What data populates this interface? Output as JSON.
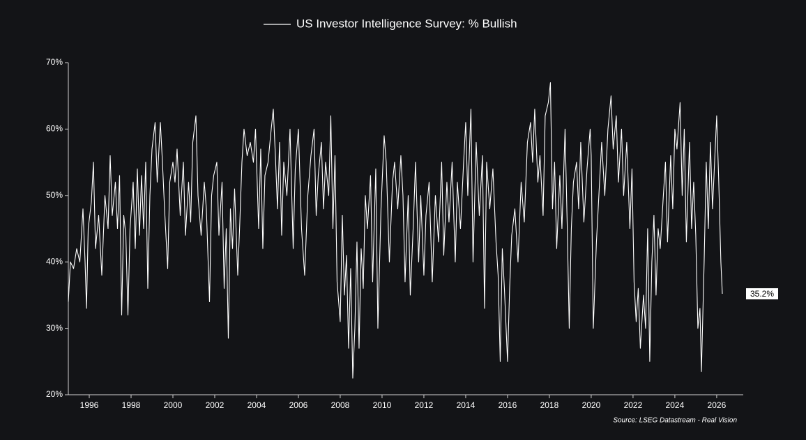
{
  "chart_data": {
    "type": "line",
    "title": "US Investor Intelligence Survey: % Bullish",
    "source": "Source: LSEG Datastream - Real Vision",
    "xlim": [
      1995.0,
      2027.27
    ],
    "xticks": [
      1996,
      1998,
      2000,
      2002,
      2004,
      2006,
      2008,
      2010,
      2012,
      2014,
      2016,
      2018,
      2020,
      2022,
      2024,
      2026
    ],
    "ylim": [
      20,
      70
    ],
    "yticks": [
      {
        "value": 20,
        "label": "20%"
      },
      {
        "value": 30,
        "label": "30%"
      },
      {
        "value": 40,
        "label": "40%"
      },
      {
        "value": 50,
        "label": "50%"
      },
      {
        "value": 60,
        "label": "60%"
      },
      {
        "value": 70,
        "label": "70%"
      }
    ],
    "last_label": "35.2%",
    "x": [
      1995.0,
      1995.1,
      1995.25,
      1995.4,
      1995.55,
      1995.7,
      1995.8,
      1995.87,
      1995.95,
      1996.1,
      1996.2,
      1996.3,
      1996.45,
      1996.6,
      1996.75,
      1996.9,
      1997.0,
      1997.1,
      1997.25,
      1997.35,
      1997.45,
      1997.55,
      1997.65,
      1997.75,
      1997.85,
      1997.95,
      1998.1,
      1998.2,
      1998.3,
      1998.4,
      1998.5,
      1998.6,
      1998.7,
      1998.8,
      1998.9,
      1999.0,
      1999.15,
      1999.25,
      1999.4,
      1999.5,
      1999.6,
      1999.75,
      1999.85,
      2000.0,
      2000.1,
      2000.2,
      2000.35,
      2000.5,
      2000.6,
      2000.75,
      2000.85,
      2000.95,
      2001.1,
      2001.2,
      2001.35,
      2001.5,
      2001.6,
      2001.75,
      2001.85,
      2001.95,
      2002.1,
      2002.2,
      2002.35,
      2002.45,
      2002.55,
      2002.65,
      2002.75,
      2002.85,
      2002.95,
      2003.1,
      2003.2,
      2003.3,
      2003.4,
      2003.55,
      2003.7,
      2003.85,
      2003.95,
      2004.1,
      2004.2,
      2004.3,
      2004.4,
      2004.55,
      2004.7,
      2004.8,
      2004.9,
      2005.0,
      2005.1,
      2005.2,
      2005.3,
      2005.45,
      2005.6,
      2005.75,
      2005.85,
      2006.0,
      2006.15,
      2006.3,
      2006.45,
      2006.6,
      2006.75,
      2006.85,
      2006.95,
      2007.1,
      2007.2,
      2007.3,
      2007.45,
      2007.55,
      2007.65,
      2007.75,
      2007.85,
      2008.0,
      2008.1,
      2008.2,
      2008.3,
      2008.4,
      2008.5,
      2008.6,
      2008.7,
      2008.8,
      2008.9,
      2009.0,
      2009.1,
      2009.2,
      2009.3,
      2009.45,
      2009.55,
      2009.7,
      2009.8,
      2009.95,
      2010.1,
      2010.2,
      2010.35,
      2010.5,
      2010.6,
      2010.75,
      2010.9,
      2011.0,
      2011.1,
      2011.25,
      2011.35,
      2011.5,
      2011.6,
      2011.75,
      2011.85,
      2012.0,
      2012.1,
      2012.25,
      2012.4,
      2012.55,
      2012.7,
      2012.85,
      2012.95,
      2013.1,
      2013.2,
      2013.35,
      2013.5,
      2013.6,
      2013.75,
      2013.9,
      2014.0,
      2014.1,
      2014.25,
      2014.35,
      2014.5,
      2014.65,
      2014.8,
      2014.9,
      2015.0,
      2015.15,
      2015.3,
      2015.45,
      2015.55,
      2015.65,
      2015.75,
      2015.85,
      2016.0,
      2016.1,
      2016.2,
      2016.35,
      2016.5,
      2016.65,
      2016.8,
      2016.95,
      2017.1,
      2017.2,
      2017.3,
      2017.45,
      2017.55,
      2017.7,
      2017.8,
      2017.95,
      2018.05,
      2018.15,
      2018.25,
      2018.35,
      2018.5,
      2018.6,
      2018.75,
      2018.85,
      2018.95,
      2019.05,
      2019.15,
      2019.3,
      2019.4,
      2019.5,
      2019.65,
      2019.8,
      2019.95,
      2020.0,
      2020.1,
      2020.25,
      2020.4,
      2020.5,
      2020.65,
      2020.8,
      2020.95,
      2021.05,
      2021.2,
      2021.3,
      2021.45,
      2021.55,
      2021.7,
      2021.85,
      2021.95,
      2022.05,
      2022.15,
      2022.25,
      2022.35,
      2022.5,
      2022.6,
      2022.7,
      2022.8,
      2022.9,
      2023.0,
      2023.1,
      2023.2,
      2023.3,
      2023.45,
      2023.55,
      2023.65,
      2023.8,
      2023.9,
      2024.0,
      2024.1,
      2024.25,
      2024.35,
      2024.45,
      2024.55,
      2024.7,
      2024.8,
      2024.9,
      2025.0,
      2025.1,
      2025.2,
      2025.27,
      2025.4,
      2025.5,
      2025.6,
      2025.7,
      2025.8,
      2025.9,
      2026.0,
      2026.1,
      2026.2,
      2026.27
    ],
    "series": [
      {
        "name": "US Investor Intelligence Survey: % Bullish",
        "color": "#ffffff",
        "values": [
          34,
          40,
          39,
          42,
          40,
          48,
          40,
          33,
          45,
          49,
          55,
          42,
          47,
          38,
          50,
          45,
          56,
          47,
          52,
          45,
          53,
          32,
          47,
          44,
          32,
          45,
          52,
          42,
          54,
          44,
          53,
          45,
          55,
          36,
          50,
          57,
          61,
          52,
          61,
          55,
          48,
          39,
          52,
          55,
          52,
          57,
          47,
          55,
          44,
          52,
          46,
          58,
          62,
          50,
          44,
          52,
          48,
          34,
          50,
          53,
          55,
          44,
          52,
          36,
          45,
          28.5,
          48,
          42,
          51,
          38,
          46,
          55,
          60,
          56,
          58,
          55,
          60,
          45,
          57,
          42,
          53,
          55,
          60,
          63,
          56,
          48,
          58,
          44,
          55,
          50,
          60,
          42,
          54,
          60,
          45,
          38,
          50,
          56,
          60,
          47,
          53,
          58,
          48,
          55,
          50,
          62,
          45,
          56,
          37,
          31,
          47,
          35,
          41,
          27,
          39,
          22.5,
          30,
          43,
          27,
          42,
          36,
          50,
          45,
          53,
          37,
          54,
          30,
          48,
          59,
          55,
          40,
          52,
          55,
          48,
          56,
          50,
          37,
          50,
          35,
          46,
          55,
          40,
          50,
          38,
          47,
          52,
          37,
          50,
          43,
          55,
          41,
          52,
          46,
          55,
          40,
          52,
          45,
          55,
          61,
          50,
          63,
          40,
          58,
          47,
          56,
          33,
          55,
          48,
          54,
          43,
          38,
          25,
          42,
          36,
          25,
          36,
          44,
          48,
          40,
          52,
          46,
          58,
          61,
          55,
          63,
          52,
          56,
          47,
          62,
          64,
          67,
          48,
          55,
          42,
          53,
          45,
          60,
          46,
          30,
          45,
          52,
          55,
          48,
          58,
          46,
          54,
          60,
          56,
          30,
          43,
          52,
          58,
          50,
          60,
          65,
          57,
          62,
          52,
          60,
          50,
          58,
          45,
          54,
          37,
          31,
          36,
          27,
          35,
          30,
          45,
          25,
          40,
          47,
          35,
          45,
          42,
          50,
          55,
          43,
          56,
          48,
          60,
          57,
          64,
          50,
          60,
          43,
          58,
          45,
          52,
          44,
          30,
          33,
          23.5,
          40,
          55,
          45,
          58,
          48,
          55,
          62,
          52,
          40,
          35.2
        ]
      }
    ]
  }
}
